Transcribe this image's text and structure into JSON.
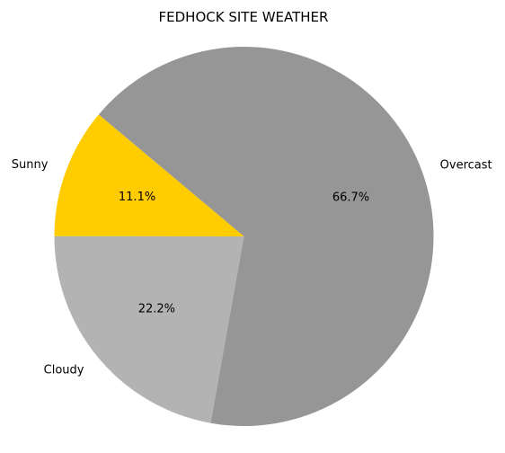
{
  "chart_data": {
    "type": "pie",
    "title": "FEDHOCK SITE WEATHER",
    "slices": [
      {
        "label": "Sunny",
        "value": 11.1,
        "pct_label": "11.1%",
        "color": "#ffcc00"
      },
      {
        "label": "Cloudy",
        "value": 22.2,
        "pct_label": "22.2%",
        "color": "#b3b3b3"
      },
      {
        "label": "Overcast",
        "value": 66.7,
        "pct_label": "66.7%",
        "color": "#969696"
      }
    ],
    "start_angle_deg": 140,
    "direction": "counterclockwise"
  }
}
